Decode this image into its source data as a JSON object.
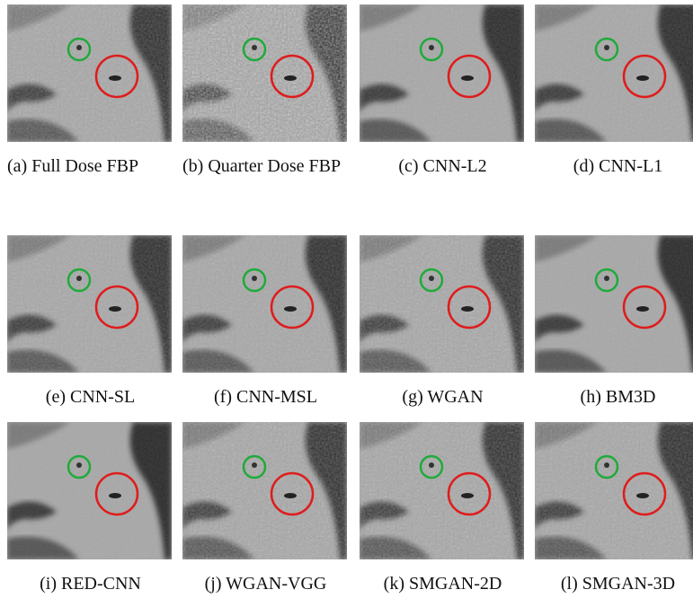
{
  "panels": [
    {
      "caption": "(a) Full Dose FBP"
    },
    {
      "caption": "(b) Quarter Dose FBP"
    },
    {
      "caption": "(c) CNN-L2"
    },
    {
      "caption": "(d) CNN-L1"
    },
    {
      "caption": "(e) CNN-SL"
    },
    {
      "caption": "(f) CNN-MSL"
    },
    {
      "caption": "(g) WGAN"
    },
    {
      "caption": "(h) BM3D"
    },
    {
      "caption": "(i) RED-CNN"
    },
    {
      "caption": "(j) WGAN-VGG"
    },
    {
      "caption": "(k) SMGAN-2D"
    },
    {
      "caption": "(l) SMGAN-3D"
    }
  ]
}
